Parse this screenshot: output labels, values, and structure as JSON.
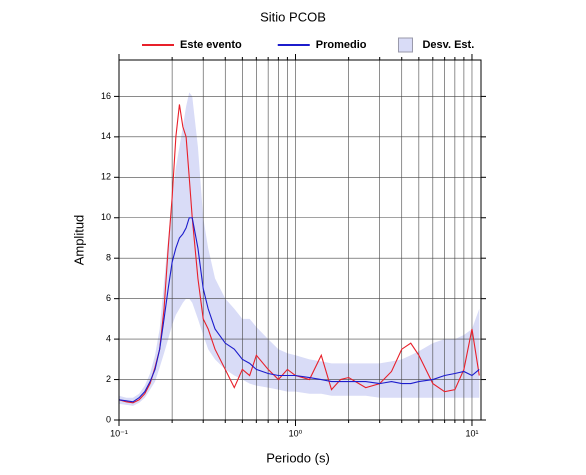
{
  "chart_data": {
    "type": "line",
    "title": "Sitio PCOB",
    "xlabel": "Periodo (s)",
    "ylabel": "Amplitud",
    "log_x": true,
    "grid": true,
    "xlim": [
      0.1,
      11.25
    ],
    "ylim": [
      0,
      17.8
    ],
    "xticks": [
      {
        "value": 0.1,
        "label": "10⁻¹"
      },
      {
        "value": 1,
        "label": "10⁰"
      },
      {
        "value": 10,
        "label": "10¹"
      }
    ],
    "x_minor_ticks": [
      0.2,
      0.3,
      0.4,
      0.5,
      0.6,
      0.7,
      0.8,
      0.9,
      2,
      3,
      4,
      5,
      6,
      7,
      8,
      9
    ],
    "yticks": [
      0,
      2,
      4,
      6,
      8,
      10,
      12,
      14,
      16
    ],
    "x": [
      0.1,
      0.11,
      0.12,
      0.13,
      0.14,
      0.15,
      0.16,
      0.17,
      0.18,
      0.19,
      0.2,
      0.21,
      0.22,
      0.23,
      0.24,
      0.25,
      0.26,
      0.28,
      0.3,
      0.32,
      0.35,
      0.4,
      0.45,
      0.5,
      0.55,
      0.6,
      0.7,
      0.8,
      0.9,
      1,
      1.2,
      1.4,
      1.6,
      1.8,
      2,
      2.5,
      3,
      3.5,
      4,
      4.5,
      5,
      6,
      7,
      8,
      9,
      10,
      11
    ],
    "band": {
      "name": "Desv. Est.",
      "color": "#d9dcf7",
      "upper": [
        1.2,
        1.1,
        1.1,
        1.3,
        1.7,
        2.3,
        3.2,
        4.5,
        6.8,
        9,
        11,
        12.5,
        13.5,
        14.5,
        15.5,
        16.2,
        16,
        13.5,
        10,
        8.5,
        7,
        6,
        5.5,
        5,
        5,
        4.6,
        4,
        3.5,
        3.3,
        3.2,
        3,
        2.9,
        2.8,
        2.8,
        2.8,
        2.8,
        2.8,
        2.9,
        3,
        3.2,
        3.4,
        3.8,
        4,
        4,
        4.2,
        4.5,
        5.5
      ],
      "lower": [
        0.8,
        0.75,
        0.7,
        0.85,
        1.1,
        1.5,
        1.9,
        2.6,
        3.3,
        4,
        4.7,
        5.2,
        5.5,
        5.8,
        6.0,
        6.0,
        5.8,
        5.0,
        4.2,
        3.5,
        3.0,
        2.5,
        2.2,
        2.0,
        1.8,
        1.7,
        1.6,
        1.5,
        1.4,
        1.4,
        1.3,
        1.3,
        1.2,
        1.2,
        1.2,
        1.2,
        1.1,
        1.1,
        1.1,
        1.1,
        1.1,
        1.1,
        1.1,
        1.1,
        1.1,
        1.1,
        1.1
      ]
    },
    "series": [
      {
        "name": "Este evento",
        "color": "#e8202a",
        "values": [
          1.0,
          0.9,
          0.85,
          1.0,
          1.3,
          1.8,
          2.6,
          3.5,
          5.5,
          8.5,
          11,
          14,
          15.6,
          14.5,
          14,
          12,
          10,
          7,
          5,
          4.5,
          3.5,
          2.5,
          1.6,
          2.5,
          2.2,
          3.2,
          2.5,
          2,
          2.5,
          2.2,
          2.0,
          3.2,
          1.5,
          2.0,
          2.1,
          1.6,
          1.8,
          2.4,
          3.5,
          3.8,
          3.2,
          1.8,
          1.4,
          1.5,
          2.5,
          4.5,
          2.2
        ]
      },
      {
        "name": "Promedio",
        "color": "#1c1ccc",
        "values": [
          1.0,
          0.95,
          0.9,
          1.1,
          1.4,
          1.9,
          2.5,
          3.5,
          5,
          6.5,
          7.8,
          8.5,
          9.0,
          9.2,
          9.5,
          10.0,
          10.0,
          8.5,
          6.5,
          5.5,
          4.5,
          3.8,
          3.5,
          3.0,
          2.8,
          2.5,
          2.3,
          2.2,
          2.2,
          2.2,
          2.1,
          2.0,
          1.9,
          1.9,
          1.9,
          1.9,
          1.8,
          1.9,
          1.8,
          1.8,
          1.9,
          2.0,
          2.2,
          2.3,
          2.4,
          2.2,
          2.5
        ]
      }
    ]
  }
}
